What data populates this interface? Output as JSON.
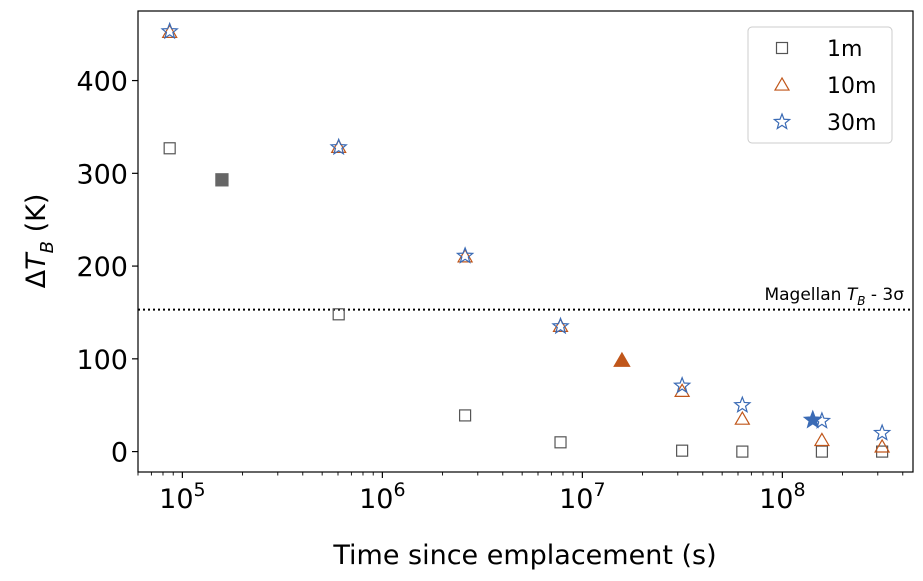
{
  "chart_data": {
    "type": "scatter",
    "xscale": "log",
    "xlim": [
      60000,
      450000000
    ],
    "ylim": [
      -22,
      475
    ],
    "xlabel": "Time since emplacement (s)",
    "ylabel": "ΔT_B (K)",
    "y_ticks": [
      0,
      100,
      200,
      300,
      400
    ],
    "x_ticks": [
      {
        "value": 100000,
        "base": "10",
        "exp": "5"
      },
      {
        "value": 1000000,
        "base": "10",
        "exp": "6"
      },
      {
        "value": 10000000,
        "base": "10",
        "exp": "7"
      },
      {
        "value": 100000000,
        "base": "10",
        "exp": "8"
      }
    ],
    "grid": false,
    "legend_position": "top-right",
    "series": [
      {
        "name": "1m",
        "marker": "square",
        "color": "#555555",
        "points": [
          [
            86400,
            327
          ],
          [
            604800,
            148
          ],
          [
            2592000,
            39
          ],
          [
            7776000,
            10
          ],
          [
            31536000,
            1
          ],
          [
            63072000,
            0
          ],
          [
            157680000,
            0
          ],
          [
            315360000,
            0
          ]
        ]
      },
      {
        "name": "10m",
        "marker": "triangle",
        "color": "#C0561A",
        "points": [
          [
            86400,
            452
          ],
          [
            604800,
            328
          ],
          [
            2592000,
            210
          ],
          [
            7776000,
            135
          ],
          [
            31536000,
            65
          ],
          [
            63072000,
            35
          ],
          [
            157680000,
            12
          ],
          [
            315360000,
            5
          ]
        ]
      },
      {
        "name": "30m",
        "marker": "star",
        "color": "#3B6BB5",
        "points": [
          [
            86400,
            453
          ],
          [
            604800,
            328
          ],
          [
            2592000,
            211
          ],
          [
            7776000,
            135
          ],
          [
            31536000,
            71
          ],
          [
            63072000,
            50
          ],
          [
            157680000,
            33
          ],
          [
            315360000,
            20
          ]
        ]
      }
    ],
    "filled_markers": [
      {
        "marker": "square",
        "color": "#666666",
        "x": 157680,
        "y": 293
      },
      {
        "marker": "triangle",
        "color": "#C0561A",
        "x": 15768000,
        "y": 98
      },
      {
        "marker": "star",
        "color": "#3B6BB5",
        "x": 141912000,
        "y": 34
      }
    ],
    "reference_line": {
      "y": 153,
      "style": "dotted",
      "color": "#000000"
    },
    "annotation": {
      "prefix": "Magellan ",
      "symbol": "T",
      "subscript": "B",
      "suffix": " - 3σ"
    }
  }
}
